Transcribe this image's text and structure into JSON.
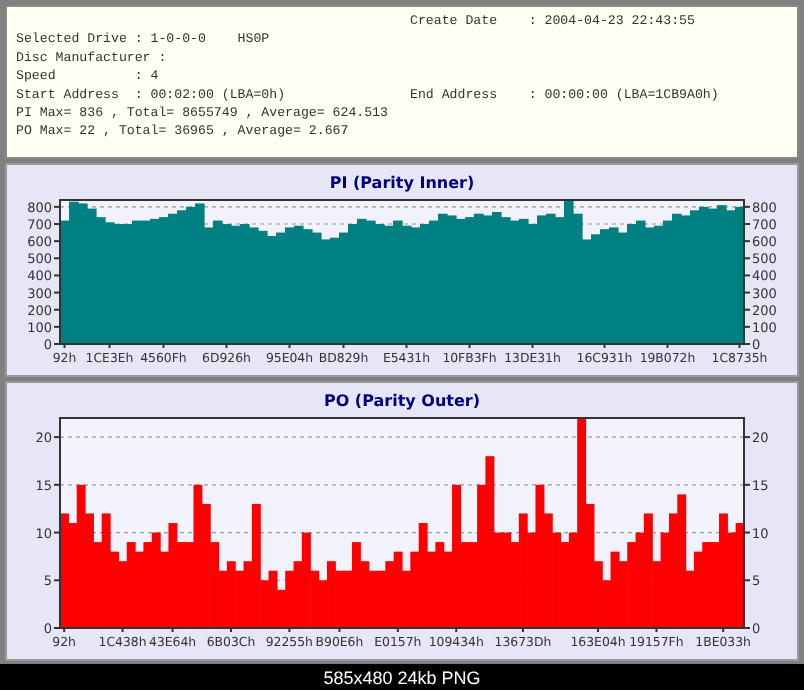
{
  "chart_data": [
    {
      "type": "other",
      "annotations": [
        "Create Date    : 2004-04-23 22:43:55",
        "Selected Drive : 1-0-0-0    HS0P",
        "Disc Manufacturer :",
        "Speed          : 4",
        "Start Address  : 00:02:00 (LBA=0h)",
        "End Address    : 00:00:00 (LBA=1CB9A0h)",
        "PI Max= 836 , Total= 8655749 , Average= 624.513",
        "PO Max= 22 , Total= 36965 , Average= 2.667"
      ]
    },
    {
      "type": "bar",
      "title": "PI (Parity Inner)",
      "color": "#008080",
      "grid": "y",
      "categories": [
        "92h",
        null,
        null,
        null,
        null,
        "1CE3Eh",
        null,
        null,
        null,
        null,
        null,
        "4560Fh",
        null,
        null,
        null,
        null,
        null,
        null,
        "6D926h",
        null,
        null,
        null,
        null,
        null,
        null,
        "95E04h",
        null,
        null,
        null,
        null,
        null,
        "BD829h",
        null,
        null,
        null,
        null,
        null,
        null,
        "E5431h",
        null,
        null,
        null,
        null,
        null,
        null,
        "10FB3Fh",
        null,
        null,
        null,
        null,
        null,
        null,
        "13DE31h",
        null,
        null,
        null,
        null,
        null,
        null,
        null,
        "16C931h",
        null,
        null,
        null,
        null,
        null,
        null,
        "19B072h",
        null,
        null,
        null,
        null,
        null,
        null,
        null,
        "1C8735h"
      ],
      "values": [
        720,
        830,
        820,
        790,
        740,
        710,
        700,
        700,
        720,
        720,
        730,
        740,
        760,
        780,
        800,
        820,
        680,
        720,
        700,
        690,
        700,
        680,
        660,
        630,
        650,
        680,
        690,
        670,
        650,
        610,
        620,
        650,
        700,
        730,
        720,
        700,
        690,
        720,
        690,
        680,
        700,
        720,
        760,
        750,
        730,
        740,
        760,
        750,
        770,
        740,
        720,
        730,
        700,
        750,
        760,
        740,
        836,
        760,
        610,
        640,
        670,
        680,
        650,
        700,
        720,
        680,
        690,
        720,
        760,
        750,
        780,
        800,
        790,
        810,
        780,
        800
      ],
      "ylim": [
        0,
        840
      ],
      "yticks": [
        0,
        100,
        200,
        300,
        400,
        500,
        600,
        700,
        800
      ],
      "y2lim": [
        0,
        840
      ],
      "y2ticks": [
        0,
        100,
        200,
        300,
        400,
        500,
        600,
        700,
        800
      ]
    },
    {
      "type": "bar",
      "title": "PO (Parity Outer)",
      "color": "#ff0000",
      "grid": "y",
      "categories": [
        "92h",
        null,
        null,
        null,
        null,
        null,
        null,
        "1C438h",
        null,
        null,
        null,
        null,
        null,
        "43E64h",
        null,
        null,
        null,
        null,
        null,
        null,
        "6B03Ch",
        null,
        null,
        null,
        null,
        null,
        null,
        "92255h",
        null,
        null,
        null,
        null,
        null,
        "B90E6h",
        null,
        null,
        null,
        null,
        null,
        null,
        "E0157h",
        null,
        null,
        null,
        null,
        null,
        null,
        "109434h",
        null,
        null,
        null,
        null,
        null,
        null,
        null,
        "13673Dh",
        null,
        null,
        null,
        null,
        null,
        null,
        null,
        null,
        "163E04h",
        null,
        null,
        null,
        null,
        null,
        null,
        "19157Fh",
        null,
        null,
        null,
        null,
        null,
        null,
        null,
        "1BE033h",
        null,
        null
      ],
      "values": [
        12,
        11,
        15,
        12,
        9,
        12,
        8,
        7,
        9,
        8,
        9,
        10,
        8,
        11,
        9,
        9,
        15,
        13,
        9,
        6,
        7,
        6,
        7,
        13,
        5,
        6,
        4,
        6,
        7,
        10,
        6,
        5,
        7,
        6,
        6,
        9,
        7,
        6,
        6,
        7,
        8,
        6,
        8,
        11,
        8,
        9,
        8,
        15,
        9,
        9,
        15,
        18,
        10,
        10,
        9,
        12,
        10,
        15,
        12,
        10,
        9,
        10,
        22,
        13,
        7,
        5,
        8,
        7,
        9,
        10,
        12,
        7,
        10,
        12,
        14,
        6,
        8,
        9,
        9,
        12,
        10,
        11
      ],
      "ylim": [
        0,
        22
      ],
      "yticks": [
        0,
        5,
        10,
        15,
        20
      ],
      "y2lim": [
        0,
        22
      ],
      "y2ticks": [
        0,
        5,
        10,
        15,
        20
      ],
      "annotations": [
        "585x480 24kb PNG"
      ]
    }
  ]
}
